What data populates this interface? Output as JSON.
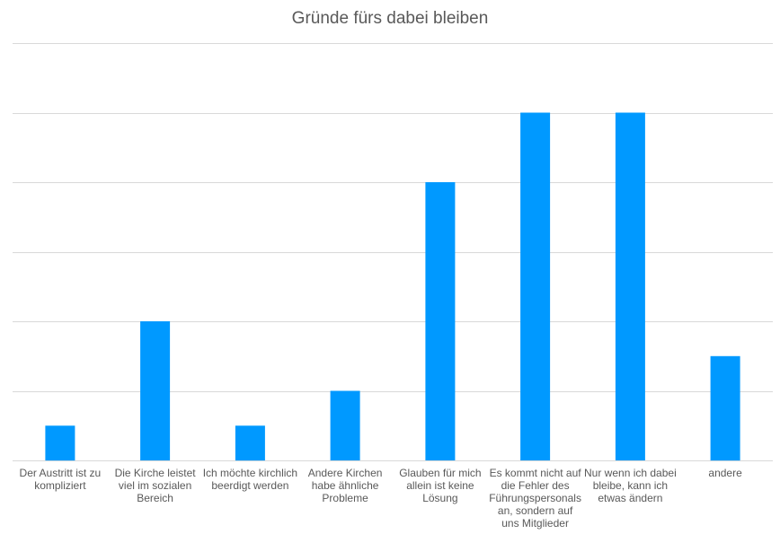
{
  "chart_data": {
    "type": "bar",
    "title": "Gründe fürs dabei bleiben",
    "categories": [
      "Der Austritt ist zu kompliziert",
      "Die Kirche leistet viel im sozialen Bereich",
      "Ich möchte kirchlich beerdigt werden",
      "Andere Kirchen habe ähnliche Probleme",
      "Glauben für mich allein ist keine Lösung",
      "Es kommt nicht auf die Fehler des Führungspersonals an, sondern auf uns Mitglieder",
      "Nur wenn ich dabei bleibe, kann ich etwas ändern",
      "andere"
    ],
    "values": [
      1,
      4,
      1,
      2,
      8,
      10,
      10,
      3
    ],
    "ylim": [
      0,
      12
    ],
    "gridlines": true,
    "y_tick_labels_visible": false,
    "bar_color": "#0099ff",
    "grid_color": "#d9d9d9",
    "text_color": "#595959"
  }
}
